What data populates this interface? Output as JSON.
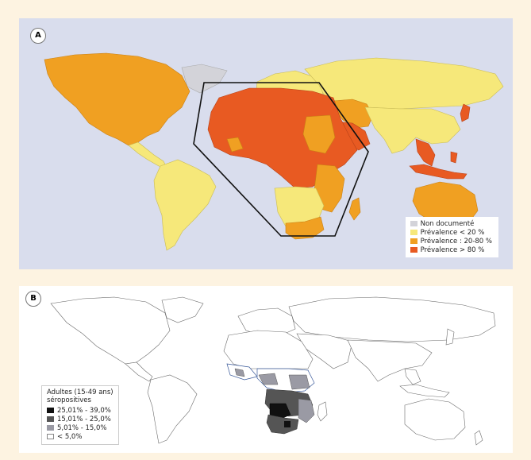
{
  "panel_a": {
    "label": "A",
    "legend": [
      {
        "text": "Non documenté",
        "color": "#d3d3d9"
      },
      {
        "text": "Prévalence < 20 %",
        "color": "#f6e87a"
      },
      {
        "text": "Prévalence : 20-80 %",
        "color": "#f0a022"
      },
      {
        "text": "Prévalence > 80 %",
        "color": "#e85a22"
      }
    ]
  },
  "panel_b": {
    "label": "B",
    "legend_title_line1": "Adultes (15-49 ans)",
    "legend_title_line2": "séropositives",
    "legend": [
      {
        "text": "25,01% - 39,0%",
        "color": "#111111"
      },
      {
        "text": "15,01% - 25,0%",
        "color": "#555555"
      },
      {
        "text": "5,01% - 15,0%",
        "color": "#9a9aa4"
      },
      {
        "text": "< 5,0%",
        "color": "#ffffff"
      }
    ]
  }
}
